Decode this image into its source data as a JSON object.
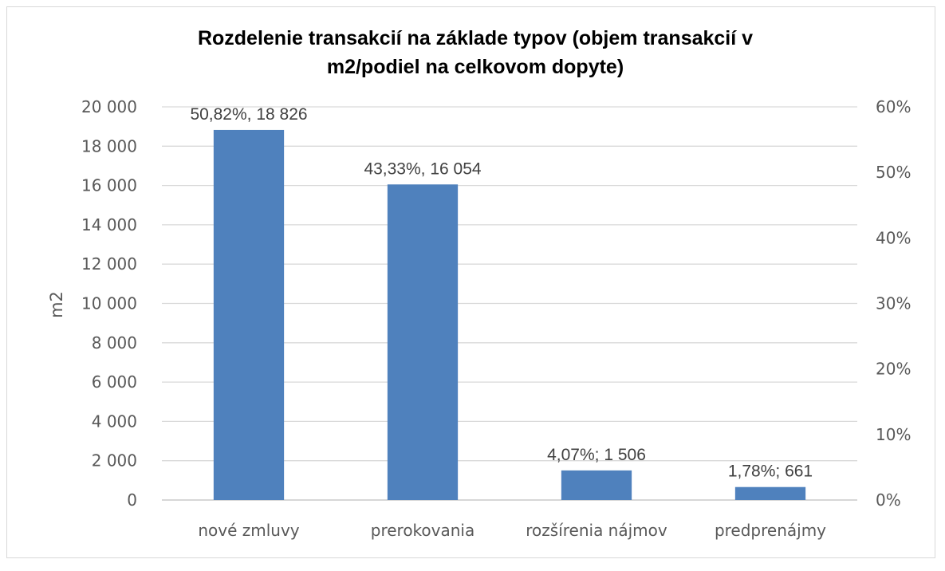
{
  "chart_data": {
    "type": "bar",
    "title_lines": [
      "Rozdelenie transakcií na základe typov (objem transakcií v",
      "m2/podiel na celkovom dopyte)"
    ],
    "ylabel": "m2",
    "categories": [
      "nové zmluvy",
      "prerokovania",
      "rozšírenia nájmov",
      "predprenájmy"
    ],
    "values": [
      18826,
      16054,
      1506,
      661
    ],
    "shares_percent": [
      50.82,
      43.33,
      4.07,
      1.78
    ],
    "data_labels": [
      "50,82%, 18 826",
      "43,33%, 16 054",
      "4,07%; 1 506",
      "1,78%; 661"
    ],
    "ylim": [
      0,
      20000
    ],
    "y_ticks": [
      0,
      2000,
      4000,
      6000,
      8000,
      10000,
      12000,
      14000,
      16000,
      18000,
      20000
    ],
    "y_tick_labels": [
      "0",
      "2 000",
      "4 000",
      "6 000",
      "8 000",
      "10 000",
      "12 000",
      "14 000",
      "16 000",
      "18 000",
      "20 000"
    ],
    "y2lim": [
      0,
      60
    ],
    "y2_ticks": [
      0,
      10,
      20,
      30,
      40,
      50,
      60
    ],
    "y2_tick_labels": [
      "0%",
      "10%",
      "20%",
      "30%",
      "40%",
      "50%",
      "60%"
    ],
    "grid": true,
    "legend": "none",
    "bar_color": "#4f81bd",
    "grid_color": "#d9d9d9"
  }
}
